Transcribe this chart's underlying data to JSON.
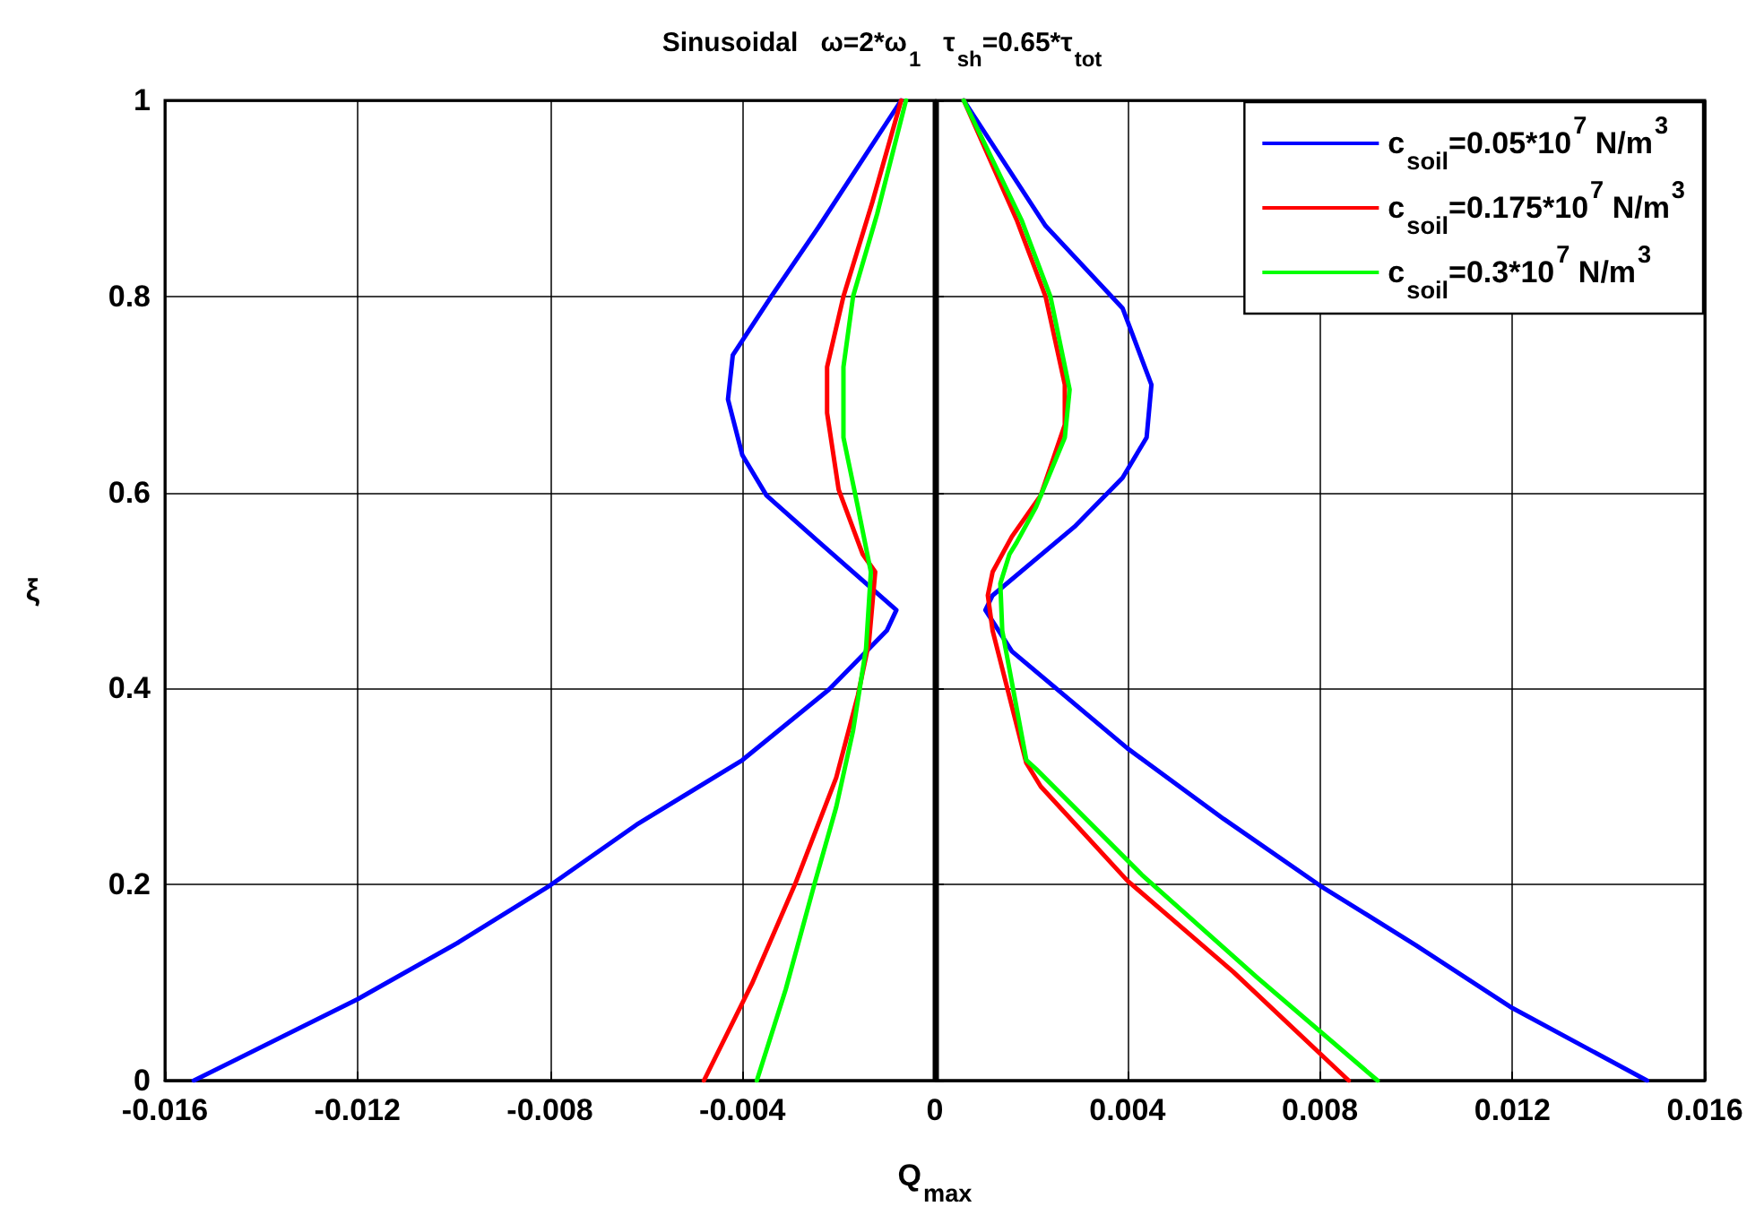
{
  "chart_data": {
    "type": "line",
    "title": "Sinusoidal   ω=2*ω$_{1}$   τ$_{sh}$=0.65*τ$_{tot}$",
    "xlabel": "Q$_{max}$",
    "ylabel": "ξ",
    "xlim": [
      -0.016,
      0.016
    ],
    "xticks": [
      -0.016,
      -0.012,
      -0.008,
      -0.004,
      0,
      0.004,
      0.008,
      0.012,
      0.016
    ],
    "ylim": [
      0,
      1
    ],
    "yticks": [
      0,
      0.2,
      0.4,
      0.6,
      0.8,
      1
    ],
    "grid": true,
    "legend": "top right",
    "marker": "none",
    "line_style": "solid",
    "ref_lines": [
      {
        "axis": "x",
        "value": 0,
        "color": "#000000"
      }
    ],
    "series": [
      {
        "name": "c$_{soil}$=0.05*10$^{7}$ N/m$^{3}$",
        "color": "#0000ff",
        "x": [
          -0.0154,
          -0.012,
          -0.0099,
          -0.008,
          -0.0062,
          -0.004,
          -0.0022,
          -0.001,
          -0.0008,
          -0.0024,
          -0.0035,
          -0.004,
          -0.0043,
          -0.0042,
          -0.0034,
          -0.0024,
          -0.0007,
          null,
          0.0006,
          0.0023,
          0.0039,
          0.0045,
          0.0044,
          0.0039,
          0.0029,
          0.0012,
          0.00105,
          0.0016,
          0.004,
          0.006,
          0.008,
          0.01,
          0.012,
          0.0148
        ],
        "values": [
          0,
          0.083,
          0.141,
          0.199,
          0.261,
          0.327,
          0.399,
          0.459,
          0.48,
          0.549,
          0.597,
          0.638,
          0.695,
          0.74,
          0.8,
          0.872,
          1,
          null,
          1,
          0.872,
          0.788,
          0.71,
          0.656,
          0.615,
          0.565,
          0.495,
          0.48,
          0.438,
          0.339,
          0.267,
          0.199,
          0.138,
          0.074,
          0
        ]
      },
      {
        "name": "c$_{soil}$=0.175*10$^{7}$ N/m$^{3}$",
        "color": "#ff0000",
        "x": [
          -0.0048,
          -0.0038,
          -0.0029,
          -0.00205,
          -0.0016,
          -0.00137,
          -0.00124,
          -0.0015,
          -0.002,
          -0.00224,
          -0.00224,
          -0.0019,
          -0.0013,
          -0.0007,
          null,
          0.0006,
          0.0017,
          0.0023,
          0.0027,
          0.0027,
          0.0022,
          0.0016,
          0.0012,
          0.0011,
          0.0012,
          0.0019,
          0.0022,
          0.004,
          0.0062,
          0.0086
        ],
        "values": [
          0,
          0.099,
          0.201,
          0.309,
          0.393,
          0.447,
          0.519,
          0.537,
          0.603,
          0.681,
          0.728,
          0.8,
          0.896,
          1,
          null,
          1,
          0.878,
          0.8,
          0.71,
          0.669,
          0.597,
          0.555,
          0.519,
          0.495,
          0.459,
          0.324,
          0.3,
          0.204,
          0.111,
          0
        ]
      },
      {
        "name": "c$_{soil}$=0.3*10$^{7}$ N/m$^{3}$",
        "color": "#00ff00",
        "x": [
          -0.0037,
          -0.0031,
          -0.0025,
          -0.00205,
          -0.0017,
          -0.00143,
          -0.00133,
          -0.0016,
          -0.0019,
          -0.0019,
          -0.0017,
          -0.0012,
          -0.0006,
          null,
          0.0006,
          0.0018,
          0.0024,
          0.0028,
          0.0027,
          0.0021,
          0.0017,
          0.00155,
          0.00136,
          0.0014,
          0.0019,
          0.0021,
          0.0043,
          0.0067,
          0.0092
        ],
        "values": [
          0,
          0.093,
          0.201,
          0.279,
          0.357,
          0.441,
          0.519,
          0.585,
          0.656,
          0.728,
          0.8,
          0.884,
          1,
          null,
          1,
          0.878,
          0.8,
          0.705,
          0.656,
          0.585,
          0.549,
          0.537,
          0.507,
          0.459,
          0.327,
          0.318,
          0.21,
          0.105,
          0
        ]
      }
    ]
  }
}
